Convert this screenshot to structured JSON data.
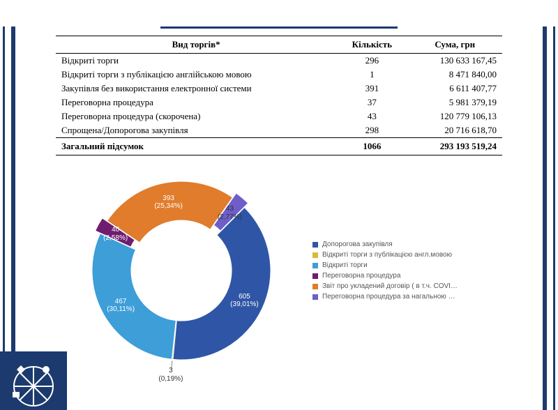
{
  "frame_color": "#1c3a6e",
  "table": {
    "columns": [
      "Вид торгів*",
      "Кількість",
      "Сума, грн"
    ],
    "rows": [
      [
        "Відкриті торги",
        "296",
        "130 633 167,45"
      ],
      [
        "Відкриті торги з публікацією англійською мовою",
        "1",
        "8 471 840,00"
      ],
      [
        "Закупівля без використання електронної системи",
        "391",
        "6 611 407,77"
      ],
      [
        "Переговорна процедура",
        "37",
        "5 981 379,19"
      ],
      [
        "Переговорна процедура (скорочена)",
        "43",
        "120 779 106,13"
      ],
      [
        "Спрощена/Допорогова закупівля",
        "298",
        "20 716 618,70"
      ]
    ],
    "total": [
      "Загальний підсумок",
      "1066",
      "293 193 519,24"
    ],
    "col_align": [
      "left",
      "center",
      "right"
    ],
    "header_fontsize": 13,
    "body_fontsize": 13
  },
  "donut": {
    "type": "donut",
    "total": 1551,
    "inner_radius": 72,
    "outer_radius": 128,
    "background_color": "#ffffff",
    "label_fontsize": 10,
    "slices": [
      {
        "value": 605,
        "pct": "39,01%",
        "color": "#2f56a6",
        "label_color": "#ffffff",
        "pull": 0
      },
      {
        "value": 3,
        "pct": "0,19%",
        "color": "#d9b93b",
        "label_color": "#333333",
        "pull": 0
      },
      {
        "value": 467,
        "pct": "30,11%",
        "color": "#3d9ed8",
        "label_color": "#ffffff",
        "pull": 0
      },
      {
        "value": 40,
        "pct": "2,58%",
        "color": "#6f1d6f",
        "label_color": "#ffffff",
        "pull": 8
      },
      {
        "value": 393,
        "pct": "25,34%",
        "color": "#e07c2c",
        "label_color": "#ffffff",
        "pull": 0
      },
      {
        "value": 43,
        "pct": "2,77%",
        "color": "#6e5ec9",
        "label_color": "#333333",
        "pull": 8
      }
    ],
    "start_angle_deg": -45
  },
  "legend": {
    "fontsize": 10,
    "items": [
      {
        "label": "Допорогова закупівля",
        "color": "#2f56a6"
      },
      {
        "label": "Відкриті торги з публікацією англ.мовою",
        "color": "#d9b93b"
      },
      {
        "label": "Відкриті торги",
        "color": "#3d9ed8"
      },
      {
        "label": "Переговорна процедура",
        "color": "#6f1d6f"
      },
      {
        "label": "Звіт про укладений договір ( в т.ч. COVI…",
        "color": "#e07c2c"
      },
      {
        "label": "Переговорна процедура за нагальною …",
        "color": "#6e5ec9"
      }
    ]
  },
  "logo": {
    "bg": "#1c3a6e",
    "fg": "#ffffff"
  }
}
